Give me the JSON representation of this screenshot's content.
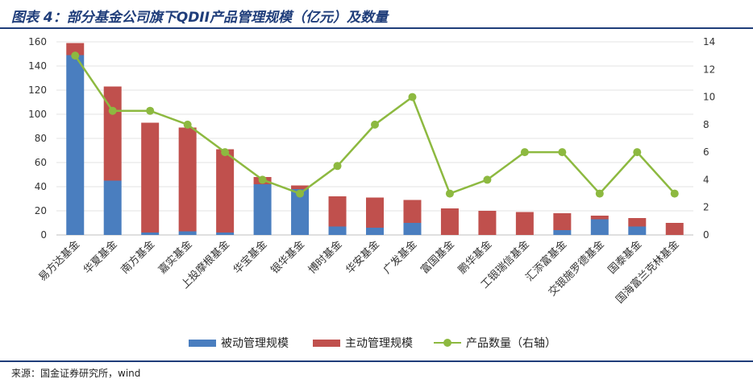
{
  "title": "图表 4：部分基金公司旗下QDII产品管理规模（亿元）及数量",
  "source": "来源：国金证券研究所，wind",
  "chart_data": {
    "type": "bar",
    "stacked": true,
    "categories": [
      "易方达基金",
      "华夏基金",
      "南方基金",
      "嘉实基金",
      "上投摩根基金",
      "华宝基金",
      "银华基金",
      "博时基金",
      "华安基金",
      "广发基金",
      "富国基金",
      "鹏华基金",
      "工银瑞信基金",
      "汇添富基金",
      "交银施罗德基金",
      "国泰基金",
      "国海富兰克林基金"
    ],
    "series": [
      {
        "name": "被动管理规模",
        "type": "bar",
        "axis": "left",
        "color": "#4a7ebf",
        "values": [
          149,
          45,
          2,
          3,
          2,
          42,
          38,
          7,
          6,
          10,
          0,
          0,
          0,
          4,
          13,
          7,
          0
        ]
      },
      {
        "name": "主动管理规模",
        "type": "bar",
        "axis": "left",
        "color": "#c0504d",
        "values": [
          10,
          78,
          91,
          86,
          69,
          6,
          3,
          25,
          25,
          19,
          22,
          20,
          19,
          14,
          3,
          7,
          10
        ]
      },
      {
        "name": "产品数量（右轴）",
        "type": "line",
        "axis": "right",
        "color": "#8db940",
        "values": [
          13,
          9,
          9,
          8,
          6,
          4,
          3,
          5,
          8,
          10,
          3,
          4,
          6,
          6,
          3,
          6,
          3
        ]
      }
    ],
    "y_left": {
      "min": 0,
      "max": 160,
      "ticks": [
        0,
        20,
        40,
        60,
        80,
        100,
        120,
        140,
        160
      ]
    },
    "y_right": {
      "min": 0,
      "max": 14,
      "ticks": [
        0,
        2,
        4,
        6,
        8,
        10,
        12,
        14
      ]
    },
    "grid": true,
    "legend_position": "bottom"
  }
}
